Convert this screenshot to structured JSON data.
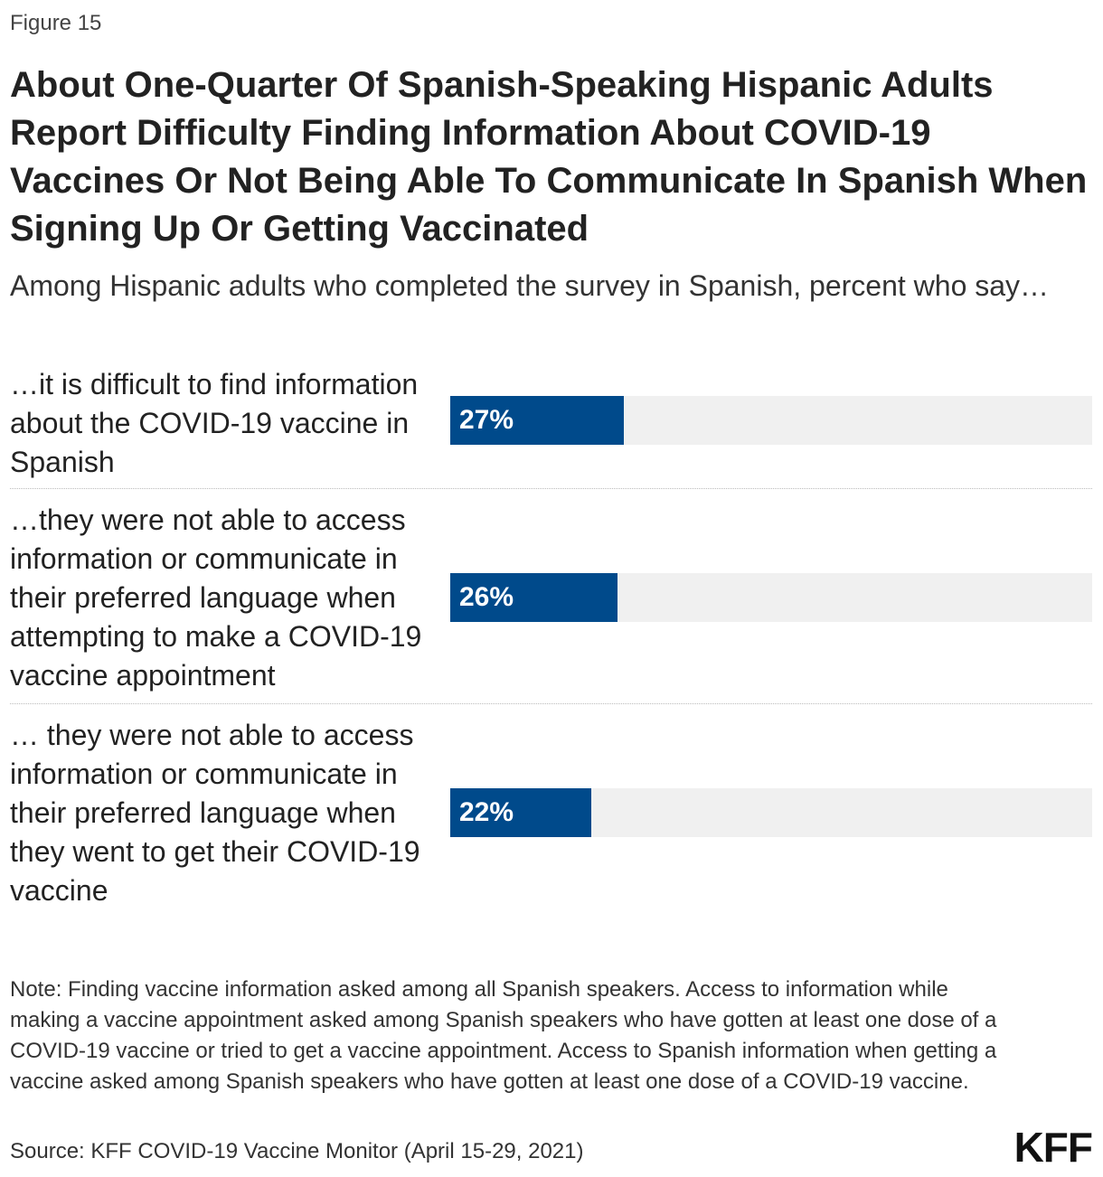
{
  "figure_label": "Figure 15",
  "title": "About One-Quarter Of Spanish-Speaking Hispanic Adults Report Difficulty Finding Information About COVID-19 Vaccines Or Not Being Able To Communicate In Spanish When Signing Up Or Getting Vaccinated",
  "subtitle": "Among Hispanic adults who completed the survey in Spanish, percent who say…",
  "colors": {
    "bar": "#004a8b",
    "track": "#f0f0f0"
  },
  "chart_data": {
    "type": "bar",
    "orientation": "horizontal",
    "categories": [
      "…it is difficult to find information about the COVID-19 vaccine in Spanish",
      "…they were not able to access information or communicate in their preferred language when attempting to make a COVID-19 vaccine appointment",
      "… they were not able to access information or communicate in their preferred language when they went to get their COVID-19 vaccine"
    ],
    "values": [
      27,
      26,
      22
    ],
    "value_labels": [
      "27%",
      "26%",
      "22%"
    ],
    "xlim": [
      0,
      100
    ],
    "unit": "%"
  },
  "note": "Note: Finding vaccine information asked among all Spanish speakers. Access to information while making a vaccine appointment asked among Spanish speakers who have gotten at least one dose of a COVID-19 vaccine or tried to get a vaccine appointment. Access to Spanish information when getting a vaccine asked among Spanish speakers who have gotten at least one dose of a COVID-19 vaccine.",
  "source": "Source: KFF COVID-19 Vaccine Monitor (April 15-29, 2021)",
  "logo": "KFF"
}
